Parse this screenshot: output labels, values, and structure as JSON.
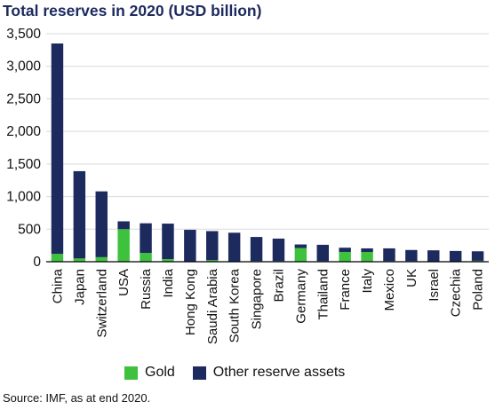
{
  "title": "Total reserves in 2020 (USD billion)",
  "source": "Source: IMF, as at end 2020.",
  "colors": {
    "gold": "#3ec23e",
    "other": "#1c2a5e",
    "grid": "#d9d9d9",
    "axis": "#000000"
  },
  "chart_data": {
    "type": "bar",
    "stacked": true,
    "categories": [
      "China",
      "Japan",
      "Switzerland",
      "USA",
      "Russia",
      "India",
      "Hong Kong",
      "Saudi Arabia",
      "South Korea",
      "Singapore",
      "Brazil",
      "Germany",
      "Thailand",
      "France",
      "Italy",
      "Mexico",
      "UK",
      "Israel",
      "Czechia",
      "Poland"
    ],
    "series": [
      {
        "name": "Gold",
        "values": [
          120,
          50,
          70,
          500,
          135,
          40,
          5,
          25,
          5,
          10,
          10,
          210,
          10,
          150,
          150,
          10,
          10,
          0,
          5,
          15
        ]
      },
      {
        "name": "Other reserve assets",
        "values": [
          3230,
          1340,
          1010,
          120,
          455,
          545,
          485,
          445,
          440,
          370,
          345,
          55,
          250,
          65,
          55,
          195,
          170,
          175,
          160,
          145
        ]
      }
    ],
    "yticks": [
      "0",
      "500",
      "1,000",
      "1,500",
      "2,000",
      "2,500",
      "3,000",
      "3,500"
    ],
    "ylim": [
      0,
      3500
    ],
    "grid": true,
    "legend": "bottom"
  },
  "legend": {
    "gold": "Gold",
    "other": "Other reserve assets"
  }
}
